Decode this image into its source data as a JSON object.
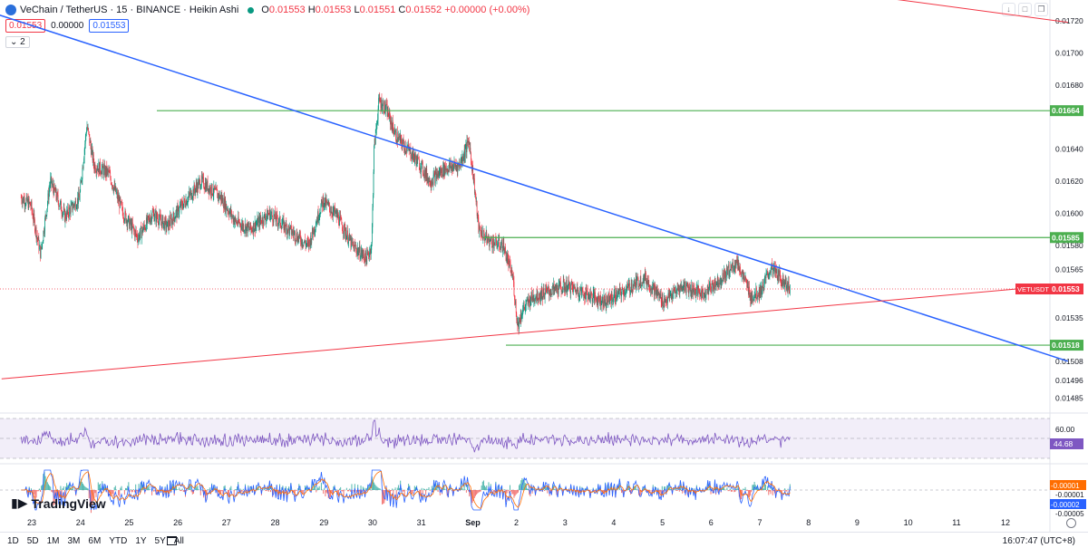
{
  "legend": {
    "symbol": "VeChain / TetherUS · 15 · BINANCE · Heikin Ashi",
    "open_label": "O",
    "open": "0.01553",
    "high_label": "H",
    "high": "0.01553",
    "low_label": "L",
    "low": "0.01551",
    "close_label": "C",
    "close": "0.01552",
    "change": "+0.00000 (+0.00%)"
  },
  "quote": {
    "bid": "0.01553",
    "spread": "0.00000",
    "ask": "0.01553"
  },
  "indicator_toggle": "2",
  "watermark": "TradingView",
  "clock": "16:07:47 (UTC+8)",
  "ranges": [
    "1D",
    "5D",
    "1M",
    "3M",
    "6M",
    "YTD",
    "1Y",
    "5Y",
    "All"
  ],
  "colors": {
    "up": "#089981",
    "down": "#f23645",
    "trend_blue": "#2962ff",
    "support_red": "#f23645",
    "level_green": "#4caf50",
    "rsi": "#7e57c2"
  },
  "chart_data": {
    "type": "candlestick",
    "title": "VeChain / TetherUS · 15 · BINANCE · Heikin Ashi",
    "price_axis": {
      "ylim": [
        0.01478,
        0.01725
      ],
      "ticks": [
        "0.01720",
        "0.01700",
        "0.01680",
        "0.01640",
        "0.01620",
        "0.01600",
        "0.01580",
        "0.01565",
        "0.01535",
        "0.01508",
        "0.01496",
        "0.01485"
      ]
    },
    "time_axis": {
      "labels": [
        "23",
        "24",
        "25",
        "26",
        "27",
        "28",
        "29",
        "30",
        "31",
        "Sep",
        "2",
        "3",
        "4",
        "5",
        "6",
        "7",
        "8",
        "9",
        "10",
        "11",
        "12"
      ],
      "day_index": [
        0,
        1,
        2,
        3,
        4,
        5,
        6,
        7,
        8,
        9,
        10,
        11,
        12,
        13,
        14,
        15,
        16,
        17,
        18,
        19,
        20
      ]
    },
    "price_path_approx": [
      [
        -0.2,
        0.0161
      ],
      [
        0.0,
        0.01605
      ],
      [
        0.2,
        0.01575
      ],
      [
        0.4,
        0.0162
      ],
      [
        0.7,
        0.01598
      ],
      [
        1.0,
        0.0161
      ],
      [
        1.15,
        0.01655
      ],
      [
        1.3,
        0.0163
      ],
      [
        1.6,
        0.01625
      ],
      [
        1.9,
        0.016
      ],
      [
        2.2,
        0.01585
      ],
      [
        2.5,
        0.016
      ],
      [
        2.8,
        0.01592
      ],
      [
        3.1,
        0.01605
      ],
      [
        3.5,
        0.0162
      ],
      [
        3.9,
        0.0161
      ],
      [
        4.2,
        0.01595
      ],
      [
        4.5,
        0.0159
      ],
      [
        4.9,
        0.016
      ],
      [
        5.3,
        0.0159
      ],
      [
        5.7,
        0.0158
      ],
      [
        6.0,
        0.01608
      ],
      [
        6.3,
        0.01598
      ],
      [
        6.6,
        0.0158
      ],
      [
        6.9,
        0.01572
      ],
      [
        7.0,
        0.0158
      ],
      [
        7.05,
        0.0164
      ],
      [
        7.15,
        0.0167
      ],
      [
        7.3,
        0.01665
      ],
      [
        7.5,
        0.01648
      ],
      [
        7.8,
        0.01638
      ],
      [
        8.0,
        0.0163
      ],
      [
        8.2,
        0.0162
      ],
      [
        8.5,
        0.01628
      ],
      [
        8.8,
        0.0163
      ],
      [
        9.0,
        0.01645
      ],
      [
        9.1,
        0.0162
      ],
      [
        9.2,
        0.0159
      ],
      [
        9.4,
        0.01583
      ],
      [
        9.7,
        0.0158
      ],
      [
        9.9,
        0.0156
      ],
      [
        10.0,
        0.0153
      ],
      [
        10.1,
        0.0154
      ],
      [
        10.3,
        0.01548
      ],
      [
        10.7,
        0.01552
      ],
      [
        11.0,
        0.01555
      ],
      [
        11.4,
        0.0155
      ],
      [
        11.8,
        0.01545
      ],
      [
        12.2,
        0.01552
      ],
      [
        12.6,
        0.0156
      ],
      [
        13.0,
        0.01545
      ],
      [
        13.4,
        0.01555
      ],
      [
        13.8,
        0.0155
      ],
      [
        14.2,
        0.0156
      ],
      [
        14.5,
        0.0157
      ],
      [
        14.8,
        0.01548
      ],
      [
        15.0,
        0.01552
      ],
      [
        15.2,
        0.01566
      ],
      [
        15.4,
        0.0156
      ],
      [
        15.6,
        0.01553
      ]
    ],
    "current_price": {
      "label": "VETUSDT",
      "value": "0.01553"
    },
    "horizontal_levels": [
      {
        "value": 0.01664,
        "label": "0.01664"
      },
      {
        "value": 0.01585,
        "label": "0.01585"
      },
      {
        "value": 0.01518,
        "label": "0.01518"
      }
    ],
    "trendlines": [
      {
        "name": "descending-resistance",
        "from": [
          -1.1,
          0.01728
        ],
        "to": [
          21.3,
          0.01508
        ]
      },
      {
        "name": "ascending-support",
        "from": [
          -0.6,
          0.01497
        ],
        "to": [
          21.0,
          0.01555
        ]
      },
      {
        "name": "upper-red-line",
        "from": [
          16.6,
          0.01738
        ],
        "to": [
          21.3,
          0.01719
        ]
      }
    ],
    "rsi": {
      "label": "44.68",
      "upper_level": "60.00"
    },
    "macd": {
      "macd": "-0.00001",
      "signal": "-0.00001",
      "histogram": "-0.00002",
      "tick": "-0.00005"
    }
  }
}
